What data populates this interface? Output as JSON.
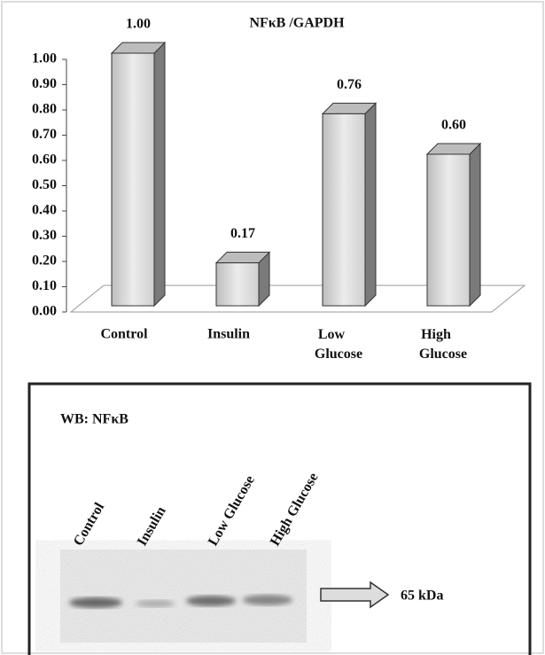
{
  "chart_data": {
    "type": "bar3d",
    "title": "NFκB /GAPDH",
    "categories": [
      "Control",
      "Insulin",
      "Low Glucose",
      "High Glucose"
    ],
    "values": [
      1.0,
      0.17,
      0.76,
      0.6
    ],
    "value_labels": [
      "1.00",
      "0.17",
      "0.76",
      "0.60"
    ],
    "color": "#d9d9d9",
    "ylim": [
      0,
      1
    ],
    "yticks": [
      {
        "value": 0,
        "label": "0.00"
      },
      {
        "value": 0.1,
        "label": "0.10"
      },
      {
        "value": 0.2,
        "label": "0.20"
      },
      {
        "value": 0.3,
        "label": "0.30"
      },
      {
        "value": 0.4,
        "label": "0.40"
      },
      {
        "value": 0.5,
        "label": "0.50"
      },
      {
        "value": 0.6,
        "label": "0.60"
      },
      {
        "value": 0.7,
        "label": "0.70"
      },
      {
        "value": 0.8,
        "label": "0.80"
      },
      {
        "value": 0.9,
        "label": "0.90"
      },
      {
        "value": 1,
        "label": "1.00"
      }
    ],
    "grid": false
  },
  "blot": {
    "title": "WB: NFκB",
    "lanes": [
      "Control",
      "Insulin",
      "Low Glucose",
      "High Glucose"
    ],
    "marker": "65 kDa"
  }
}
